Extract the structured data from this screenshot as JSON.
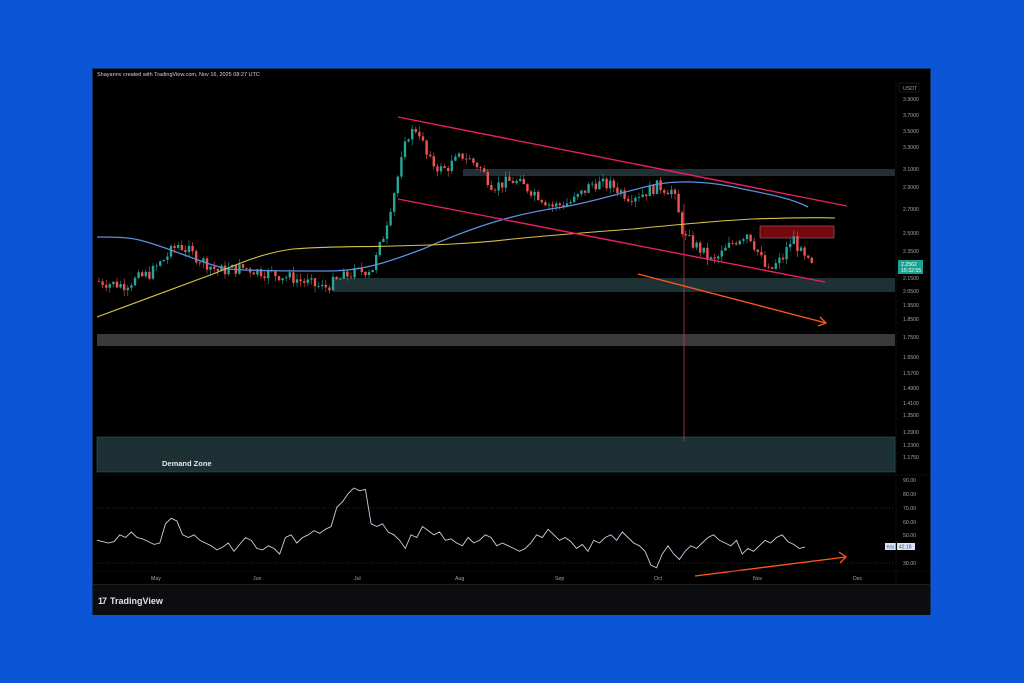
{
  "header": {
    "attribution": "Shayannv created with TradingView.com, Nov 16, 2025 08:27 UTC"
  },
  "footer": {
    "logo_mark": "17",
    "logo_text": "TradingView"
  },
  "colors": {
    "background": "#0b55d6",
    "chart_bg": "#000000",
    "bull": "#26a69a",
    "bear": "#ef5350",
    "ma_blue": "#5b8fe0",
    "ma_yellow": "#d8c34a",
    "channel": "#e91e63",
    "arrow": "#ff5a1a",
    "zone_teal": "#1e3236",
    "zone_gray": "#3a3a3c",
    "zone_red": "#7a0a0f",
    "rsi_line": "#c8cfe0",
    "price_label": "#1aa392"
  },
  "chart_data": [
    {
      "type": "candlestick",
      "title": "Price chart (USDT)",
      "quote_currency": "USDT",
      "x_ticks": [
        "May",
        "Jun",
        "Jul",
        "Aug",
        "Sep",
        "Oct",
        "Nov",
        "Dec"
      ],
      "y_ticks": [
        3.9,
        3.7,
        3.5,
        3.3,
        3.1,
        2.9,
        2.7,
        2.5,
        2.35,
        2.15,
        2.05,
        1.95,
        1.85,
        1.75,
        1.65,
        1.57,
        1.49,
        1.41,
        1.35,
        1.29,
        1.23,
        1.175
      ],
      "y_tick_labels": [
        "3.9000",
        "3.7000",
        "3.5000",
        "3.3000",
        "3.1000",
        "2.9000",
        "2.7000",
        "2.5000",
        "2.3500",
        "2.1500",
        "2.0500",
        "1.9500",
        "1.8500",
        "1.7500",
        "1.6500",
        "1.5700",
        "1.4900",
        "1.4100",
        "1.3500",
        "1.2900",
        "1.2300",
        "1.1750"
      ],
      "last_price": "2.2562",
      "countdown": "15:32:55",
      "approx_close_series": {
        "months": [
          "late Apr",
          "May",
          "mid May",
          "Jun",
          "mid Jun",
          "Jul",
          "mid Jul",
          "Aug",
          "mid Aug",
          "Sep",
          "mid Sep",
          "Oct",
          "mid Oct",
          "Nov",
          "mid Nov"
        ],
        "close": [
          2.15,
          2.25,
          2.55,
          2.3,
          2.2,
          2.25,
          3.6,
          3.2,
          3.0,
          2.9,
          3.1,
          3.0,
          2.3,
          2.5,
          2.26
        ]
      },
      "indicators": [
        {
          "name": "MA (blue)",
          "start": 2.48,
          "end": 2.9
        },
        {
          "name": "MA (yellow)",
          "start": 1.95,
          "end": 2.63
        }
      ],
      "zones": [
        {
          "name": "resistance band",
          "from": 3.06,
          "to": 3.12,
          "color": "gray-teal"
        },
        {
          "name": "supply box",
          "from": 2.44,
          "to": 2.51,
          "color": "dark red"
        },
        {
          "name": "support band",
          "from": 2.04,
          "to": 2.1,
          "color": "teal"
        },
        {
          "name": "gray band",
          "from": 1.73,
          "to": 1.77,
          "color": "gray"
        },
        {
          "name": "Demand Zone",
          "from": 1.17,
          "to": 1.26,
          "color": "teal"
        }
      ],
      "annotations": [
        "Descending channel (pink)",
        "Orange down arrow under price",
        "Oct 10 wick to ~1.25",
        "Demand Zone"
      ]
    },
    {
      "type": "line",
      "title": "RSI",
      "label": "RSI",
      "current_value": "42.18",
      "y_ticks": [
        "90.00",
        "80.00",
        "70.00",
        "60.00",
        "50.00",
        "30.00"
      ],
      "levels": [
        70,
        30
      ],
      "approx_values": [
        48,
        47,
        58,
        52,
        46,
        72,
        50,
        40,
        52,
        45,
        87,
        60,
        45,
        56,
        48,
        58,
        50,
        30,
        47,
        52,
        42
      ],
      "annotations": [
        "Orange up arrow (bullish divergence)"
      ]
    }
  ]
}
